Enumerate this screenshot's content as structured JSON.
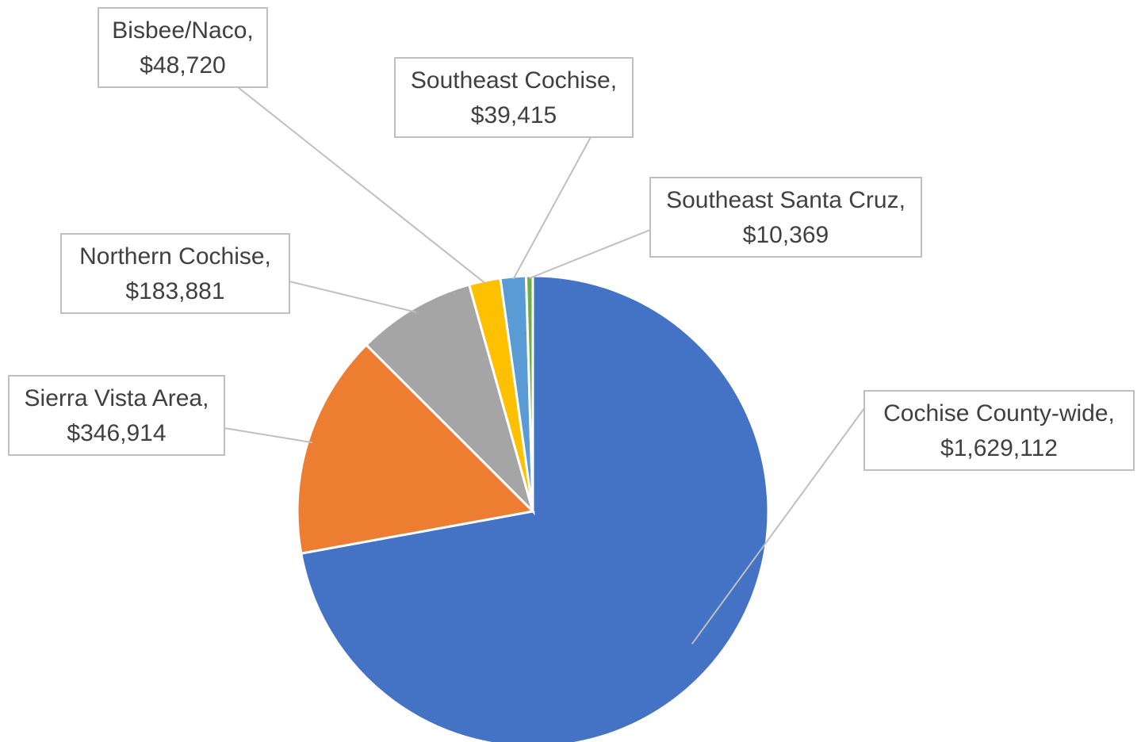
{
  "chart_data": {
    "type": "pie",
    "categories": [
      "Cochise County-wide,",
      "Sierra Vista Area,",
      "Northern Cochise,",
      "Bisbee/Naco,",
      "Southeast Cochise,",
      "Southeast Santa Cruz,"
    ],
    "values": [
      1629112,
      346914,
      183881,
      48720,
      39415,
      10369
    ],
    "value_labels": [
      "$1,629,112",
      "$346,914",
      "$183,881",
      "$48,720",
      "$39,415",
      "$10,369"
    ],
    "colors": [
      "#4472c4",
      "#ed7d31",
      "#a5a5a5",
      "#ffc000",
      "#5b9bd5",
      "#70ad47"
    ]
  }
}
